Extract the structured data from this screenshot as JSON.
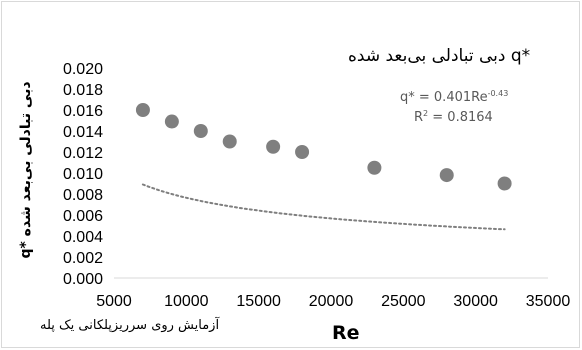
{
  "chart_data": {
    "type": "scatter",
    "title": "",
    "xlabel": "Re",
    "ylabel": "q* دبی تبادلی بی‌بعد شده",
    "xlim": [
      5000,
      35000
    ],
    "ylim": [
      0.0,
      0.02
    ],
    "x_ticks": [
      "5000",
      "10000",
      "15000",
      "20000",
      "25000",
      "30000",
      "35000"
    ],
    "y_ticks": [
      "0.000",
      "0.002",
      "0.004",
      "0.006",
      "0.008",
      "0.010",
      "0.012",
      "0.014",
      "0.016",
      "0.018",
      "0.020"
    ],
    "grid": false,
    "legend": {
      "position": "top-right",
      "entry": "دبی تبادلی بی‌بعد شده q*"
    },
    "series": [
      {
        "name": "دبی تبادلی بی‌بعد شده q*",
        "x": [
          7000,
          9000,
          11000,
          13000,
          16000,
          18000,
          23000,
          28000,
          32000
        ],
        "y": [
          0.016,
          0.0149,
          0.014,
          0.013,
          0.0125,
          0.012,
          0.0105,
          0.0098,
          0.009
        ],
        "marker_color": "#7f7f7f"
      }
    ],
    "trendline": {
      "type": "power",
      "equation_prefix": "q* = 0.401Re",
      "exponent": "-0.43",
      "r2_prefix": "R",
      "r2_sup": "2",
      "r2_value": " = 0.8164",
      "coef": 0.401,
      "power": -0.43,
      "color": "#7f7f7f"
    },
    "caption": "آزمایش روی سرریزپلکانی یک پله"
  }
}
